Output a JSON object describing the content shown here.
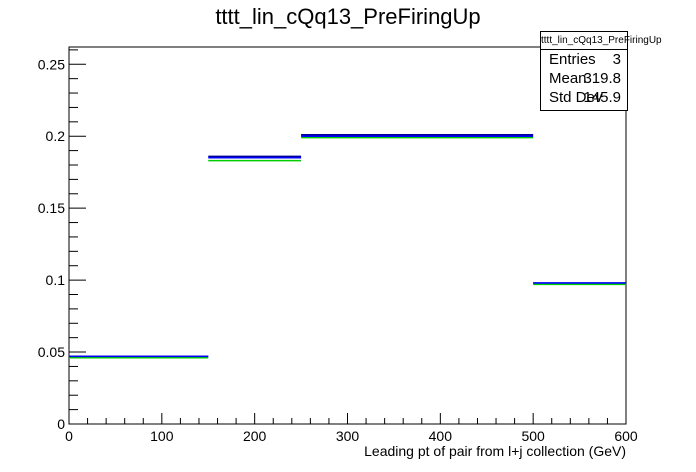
{
  "chart_data": {
    "type": "step",
    "title": "tttt_lin_cQq13_PreFiringUp",
    "xlabel": "Leading pt of pair from l+j collection (GeV)",
    "ylabel": "",
    "xlim": [
      0,
      600
    ],
    "ylim": [
      0,
      0.262
    ],
    "x_ticks": [
      "0",
      "100",
      "200",
      "300",
      "400",
      "500",
      "600"
    ],
    "y_ticks": [
      "0",
      "0.05",
      "0.1",
      "0.15",
      "0.2",
      "0.25"
    ],
    "bin_edges": [
      0,
      150,
      250,
      500,
      600
    ],
    "series": [
      {
        "color": "#000099",
        "values": [
          0.047,
          0.186,
          0.201,
          0.098
        ]
      },
      {
        "color": "#00cc00",
        "values": [
          0.046,
          0.183,
          0.199,
          0.097
        ]
      },
      {
        "color": "#0000ff",
        "values": [
          0.047,
          0.185,
          0.2,
          0.098
        ]
      }
    ],
    "stats": {
      "header": "tttt_lin_cQq13_PreFiringUp",
      "rows": [
        {
          "key": "Entries",
          "value": "3"
        },
        {
          "key": "Mean",
          "value": "319.8"
        },
        {
          "key": "Std Dev",
          "value": "145.9"
        }
      ]
    },
    "grid": false,
    "legend": "top-right"
  }
}
